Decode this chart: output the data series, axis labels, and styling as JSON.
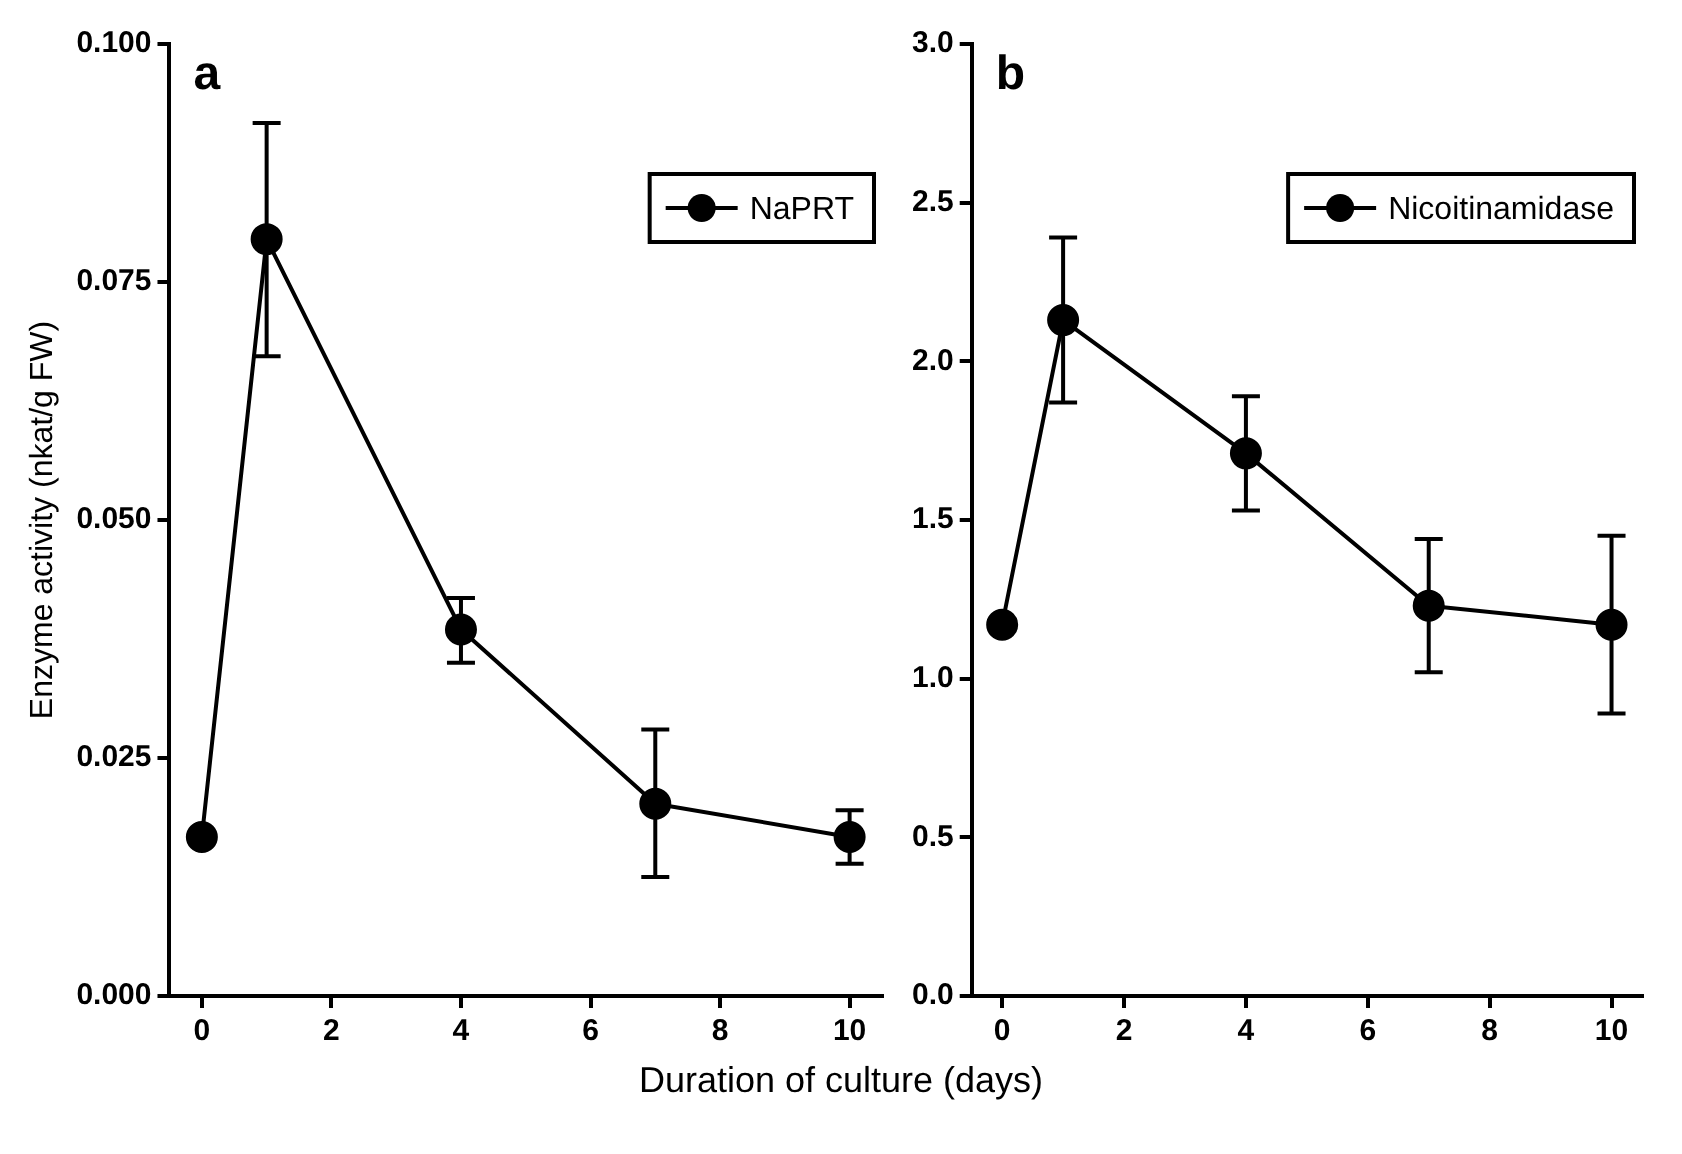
{
  "chart_data": [
    {
      "type": "line",
      "title": "a",
      "ylabel": "Enzyme activity (nkat/g FW)",
      "xlabel": "Duration of culture (days)",
      "x": [
        0,
        1,
        4,
        7,
        10
      ],
      "series": [
        {
          "name": "NaPRT",
          "color": "#000000",
          "values": [
            0.0167,
            0.0795,
            0.0385,
            0.0202,
            0.0167
          ],
          "errors": [
            null,
            [
              0.0672,
              0.0917
            ],
            [
              0.035,
              0.0418
            ],
            [
              0.0125,
              0.028
            ],
            [
              0.0139,
              0.0195
            ]
          ]
        }
      ],
      "xlim": [
        -0.5,
        10.5
      ],
      "xticks": [
        0,
        2,
        4,
        6,
        8,
        10
      ],
      "ylim": [
        0,
        0.1
      ],
      "yticks": [
        {
          "value": 0,
          "label": "0.000"
        },
        0.025,
        {
          "value": 0.05,
          "label": "0.050"
        },
        0.075,
        {
          "value": 0.1,
          "label": "0.100"
        }
      ],
      "legend": "top right",
      "marker": "circle",
      "line_style": "solid"
    },
    {
      "type": "line",
      "title": "b",
      "x": [
        0,
        1,
        4,
        7,
        10
      ],
      "series": [
        {
          "name": "Nicoitinamidase",
          "color": "#000000",
          "values": [
            1.17,
            2.13,
            1.71,
            1.23,
            1.17
          ],
          "errors": [
            null,
            [
              1.87,
              2.39
            ],
            [
              1.53,
              1.89
            ],
            [
              1.02,
              1.44
            ],
            [
              0.89,
              1.45
            ]
          ]
        }
      ],
      "xlim": [
        -0.5,
        10.5
      ],
      "xticks": [
        0,
        2,
        4,
        6,
        8,
        10
      ],
      "ylim": [
        0,
        3
      ],
      "yticks": [
        {
          "value": 0,
          "label": "0.0"
        },
        0.5,
        {
          "value": 1,
          "label": "1.0"
        },
        {
          "value": 1.5,
          "label": "1.5"
        },
        {
          "value": 2,
          "label": "2.0"
        },
        {
          "value": 2.5,
          "label": "2.5"
        },
        {
          "value": 3,
          "label": "3.0"
        }
      ],
      "legend": "top right",
      "marker": "circle",
      "line_style": "solid"
    }
  ]
}
